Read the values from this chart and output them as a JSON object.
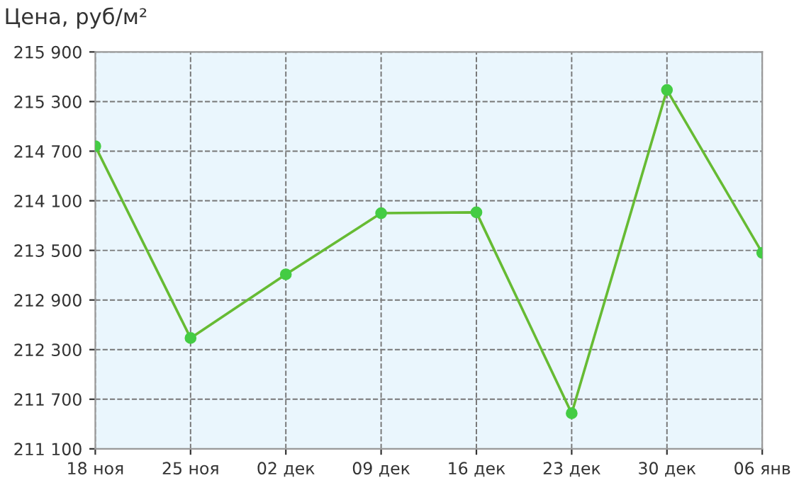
{
  "chart_data": {
    "type": "line",
    "title": "Цена, руб/м²",
    "categories": [
      "18 ноя",
      "25 ноя",
      "02 дек",
      "09 дек",
      "16 дек",
      "23 дек",
      "30 дек",
      "06 янв"
    ],
    "series": [
      {
        "color": "#66bb33",
        "values": [
          214760,
          212440,
          213210,
          213950,
          213960,
          211530,
          215440,
          213470
        ]
      }
    ],
    "ylim": [
      211100,
      215900
    ],
    "yticks": [
      {
        "value": 211100,
        "label": "211 100"
      },
      {
        "value": 211700,
        "label": "211 700"
      },
      {
        "value": 212300,
        "label": "212 300"
      },
      {
        "value": 212900,
        "label": "212 900"
      },
      {
        "value": 213500,
        "label": "213 500"
      },
      {
        "value": 214100,
        "label": "214 100"
      },
      {
        "value": 214700,
        "label": "214 700"
      },
      {
        "value": 215300,
        "label": "215 300"
      },
      {
        "value": 215900,
        "label": "215 900"
      }
    ],
    "grid": true,
    "marker": "circle",
    "line_style": "solid",
    "legend": false
  }
}
